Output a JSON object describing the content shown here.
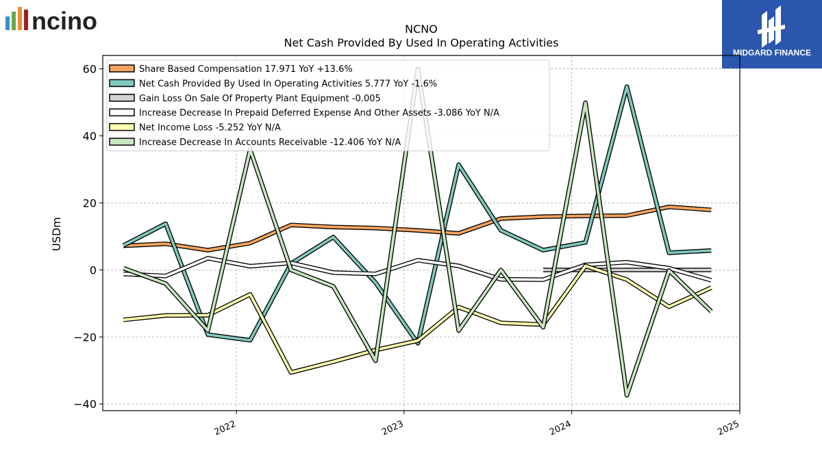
{
  "brand": {
    "left_logo_text": "ncino",
    "right_logo_text": "MIDGARD FINANCE"
  },
  "chart_data": {
    "type": "line",
    "title": "NCNO",
    "subtitle": "Net Cash Provided By Used In Operating Activities",
    "ylabel": "USDm",
    "xlabel": "",
    "ylim": [
      -42,
      64
    ],
    "xlim": [
      "2021-03-16",
      "2025-01-01"
    ],
    "yticks": [
      60,
      40,
      20,
      0,
      -20,
      -40
    ],
    "ytick_labels": [
      "60",
      "40",
      "20",
      "0",
      "−20",
      "−40"
    ],
    "xticks": [
      "2022-01-01",
      "2023-01-01",
      "2024-01-01",
      "2025-01-01"
    ],
    "xtick_labels": [
      "2022",
      "2023",
      "2024",
      "2025"
    ],
    "grid": true,
    "legend_position": "top-left",
    "x": [
      "2021-04-30",
      "2021-07-31",
      "2021-10-31",
      "2022-01-31",
      "2022-04-30",
      "2022-07-31",
      "2022-10-31",
      "2023-01-31",
      "2023-04-30",
      "2023-07-31",
      "2023-10-31",
      "2024-01-31",
      "2024-04-30",
      "2024-07-31",
      "2024-10-31"
    ],
    "series": [
      {
        "name": "Share Based Compensation",
        "legend": "Share Based Compensation  17.971 YoY +13.6%",
        "color": "#f4a460",
        "values": [
          7.2,
          7.8,
          5.9,
          8.0,
          13.4,
          12.8,
          12.5,
          11.8,
          10.9,
          15.3,
          15.9,
          16.1,
          16.2,
          18.8,
          17.9
        ]
      },
      {
        "name": "Net Cash Provided By Used In Operating Activities",
        "legend": "Net Cash Provided By Used In Operating Activities  5.777 YoY -1.6%",
        "color": "#7fc9bd",
        "values": [
          7.3,
          13.8,
          -19.3,
          -21.0,
          1.9,
          9.8,
          -3.8,
          -21.9,
          31.4,
          11.8,
          5.9,
          8.2,
          54.7,
          5.1,
          5.8
        ]
      },
      {
        "name": "Gain Loss On Sale Of Property Plant Equipment",
        "legend": "Gain Loss On Sale Of Property Plant Equipment  -0.005",
        "color": "#d3d3d3",
        "values": [
          null,
          null,
          null,
          null,
          null,
          null,
          null,
          null,
          null,
          null,
          0.0,
          0.0,
          0.0,
          0.0,
          0.0
        ]
      },
      {
        "name": "Increase Decrease In Prepaid Deferred Expense And Other Assets",
        "legend": "Increase Decrease In Prepaid Deferred Expense And Other Assets  -3.086 YoY N/A",
        "color": "#ffffff",
        "values": [
          -1.2,
          -1.8,
          3.5,
          1.1,
          2.1,
          -0.8,
          -1.2,
          2.9,
          1.2,
          -2.8,
          -2.9,
          1.5,
          2.3,
          0.5,
          -3.1
        ]
      },
      {
        "name": "Net Income Loss",
        "legend": "Net Income Loss  -5.252 YoY N/A",
        "color": "#ffffb0",
        "values": [
          -14.9,
          -13.6,
          -13.5,
          -7.3,
          -30.6,
          -27.4,
          -23.9,
          -21.1,
          -11.1,
          -15.8,
          -16.3,
          1.2,
          -2.9,
          -11.0,
          -5.3
        ]
      },
      {
        "name": "Increase Decrease In Accounts Receivable",
        "legend": "Increase Decrease In Accounts Receivable  -12.406 YoY N/A",
        "color": "#c7e6c0",
        "values": [
          0.5,
          -4.1,
          -18.1,
          35.9,
          0.0,
          -4.9,
          -27.1,
          59.9,
          -18.1,
          0.0,
          -17.1,
          49.9,
          -37.4,
          -0.2,
          -12.4
        ]
      }
    ]
  }
}
